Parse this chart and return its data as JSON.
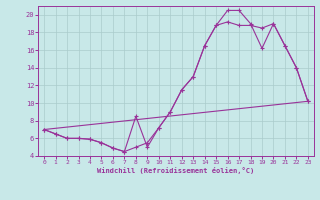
{
  "xlabel": "Windchill (Refroidissement éolien,°C)",
  "bg_color": "#c8e8e8",
  "grid_color": "#aacccc",
  "line_color": "#993399",
  "xlim": [
    -0.5,
    23.5
  ],
  "ylim": [
    4,
    21
  ],
  "xticks": [
    0,
    1,
    2,
    3,
    4,
    5,
    6,
    7,
    8,
    9,
    10,
    11,
    12,
    13,
    14,
    15,
    16,
    17,
    18,
    19,
    20,
    21,
    22,
    23
  ],
  "yticks": [
    4,
    6,
    8,
    10,
    12,
    14,
    16,
    18,
    20
  ],
  "line1_x": [
    0,
    1,
    2,
    3,
    4,
    5,
    6,
    7,
    8,
    9,
    10,
    11,
    12,
    13,
    14,
    15,
    16,
    17,
    18,
    19,
    20,
    21,
    22,
    23
  ],
  "line1_y": [
    7.0,
    6.5,
    6.0,
    6.0,
    5.9,
    5.5,
    4.9,
    4.5,
    5.0,
    5.5,
    7.2,
    9.0,
    11.5,
    13.0,
    16.5,
    18.8,
    19.2,
    18.8,
    18.8,
    18.5,
    19.0,
    16.5,
    14.0,
    10.2
  ],
  "line2_x": [
    0,
    1,
    2,
    3,
    4,
    5,
    6,
    7,
    8,
    9,
    10,
    11,
    12,
    13,
    14,
    15,
    16,
    17,
    18,
    19,
    20,
    21,
    22,
    23
  ],
  "line2_y": [
    7.0,
    6.5,
    6.0,
    6.0,
    5.9,
    5.5,
    4.9,
    4.5,
    8.5,
    5.0,
    7.2,
    9.0,
    11.5,
    13.0,
    16.5,
    18.8,
    20.5,
    20.5,
    19.0,
    16.2,
    19.0,
    16.5,
    14.0,
    10.2
  ],
  "line3_x": [
    0,
    23
  ],
  "line3_y": [
    7.0,
    10.2
  ]
}
